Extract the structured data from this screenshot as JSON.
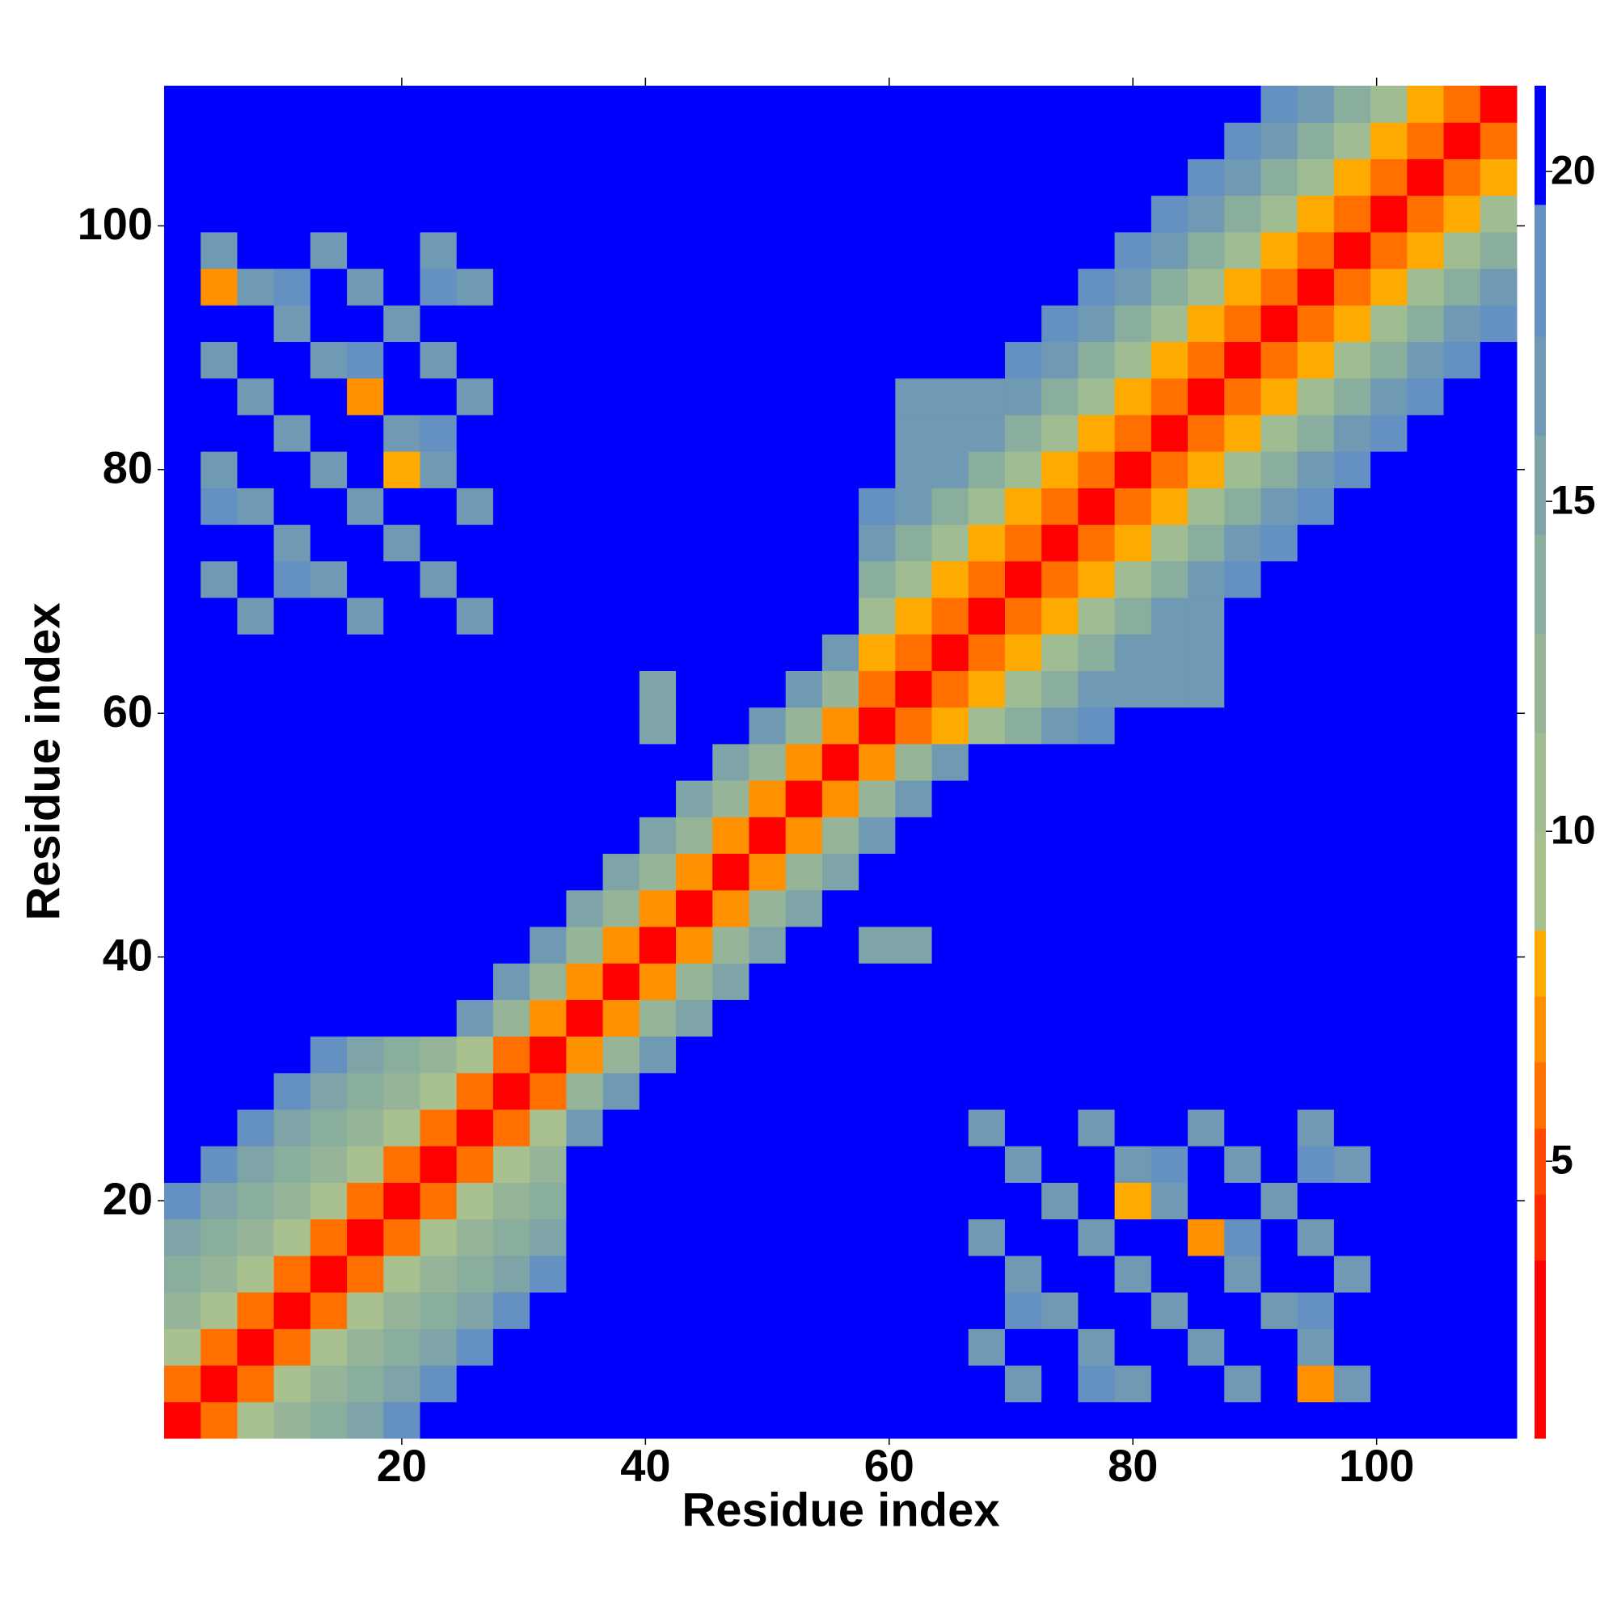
{
  "chart_data": {
    "type": "heatmap",
    "x_label": "Residue index",
    "y_label": "Residue index",
    "xlim": [
      0.5,
      111.5
    ],
    "ylim": [
      0.5,
      111.5
    ],
    "xticks": [
      20,
      40,
      60,
      80,
      100
    ],
    "yticks": [
      20,
      40,
      60,
      80,
      100
    ],
    "zlim": [
      0.8,
      21.3
    ],
    "zticks": [
      5,
      10,
      15,
      20
    ],
    "colorscale": [
      {
        "value": 3.5,
        "color": "#ff0000"
      },
      {
        "value": 4.5,
        "color": "#ff2a00"
      },
      {
        "value": 5.5,
        "color": "#ff4a00"
      },
      {
        "value": 6.5,
        "color": "#ff7000"
      },
      {
        "value": 7.5,
        "color": "#ff9000"
      },
      {
        "value": 8.5,
        "color": "#ffaa00"
      },
      {
        "value": 10,
        "color": "#a9c08f"
      },
      {
        "value": 11.5,
        "color": "#a0bc92"
      },
      {
        "value": 13,
        "color": "#96b598"
      },
      {
        "value": 14.5,
        "color": "#8aae9e"
      },
      {
        "value": 16,
        "color": "#7ea4a8"
      },
      {
        "value": 17.5,
        "color": "#7099b4"
      },
      {
        "value": 19.5,
        "color": "#6490c2"
      },
      {
        "value": 21.3,
        "color": "#0000ff"
      }
    ],
    "x": [
      2,
      5,
      8,
      11,
      14,
      17,
      20,
      23,
      26,
      29,
      32,
      35,
      38,
      41,
      44,
      47,
      50,
      53,
      56,
      59,
      62,
      65,
      68,
      71,
      74,
      77,
      80,
      83,
      86,
      89,
      92,
      95,
      98,
      101,
      104,
      107,
      110
    ],
    "y": [
      2,
      5,
      8,
      11,
      14,
      17,
      20,
      23,
      26,
      29,
      32,
      35,
      38,
      41,
      44,
      47,
      50,
      53,
      56,
      59,
      62,
      65,
      68,
      71,
      74,
      77,
      80,
      83,
      86,
      89,
      92,
      95,
      98,
      101,
      104,
      107,
      110
    ],
    "z": [
      [
        3,
        6,
        9,
        12,
        14,
        16,
        18,
        21,
        21,
        21,
        21,
        21,
        21,
        21,
        21,
        21,
        21,
        21,
        21,
        21,
        21,
        21,
        21,
        21,
        21,
        21,
        21,
        21,
        21,
        21,
        21,
        21,
        21,
        21,
        21,
        21,
        21
      ],
      [
        6,
        3,
        6,
        9,
        12,
        14,
        16,
        18,
        21,
        21,
        21,
        21,
        21,
        21,
        21,
        21,
        21,
        21,
        21,
        21,
        21,
        21,
        21,
        17,
        21,
        18,
        17,
        21,
        21,
        17,
        21,
        7,
        17,
        21,
        21,
        21,
        21
      ],
      [
        9,
        6,
        3,
        6,
        9,
        12,
        14,
        16,
        18,
        21,
        21,
        21,
        21,
        21,
        21,
        21,
        21,
        21,
        21,
        21,
        21,
        21,
        17,
        21,
        21,
        17,
        21,
        21,
        17,
        21,
        21,
        17,
        21,
        21,
        21,
        21,
        21
      ],
      [
        12,
        9,
        6,
        3,
        6,
        9,
        12,
        14,
        16,
        18,
        21,
        21,
        21,
        21,
        21,
        21,
        21,
        21,
        21,
        21,
        21,
        21,
        21,
        18,
        17,
        21,
        21,
        17,
        21,
        21,
        17,
        18,
        21,
        21,
        21,
        21,
        21
      ],
      [
        14,
        12,
        9,
        6,
        3,
        6,
        9,
        12,
        14,
        16,
        18,
        21,
        21,
        21,
        21,
        21,
        21,
        21,
        21,
        21,
        21,
        21,
        21,
        17,
        21,
        21,
        17,
        21,
        21,
        17,
        21,
        21,
        17,
        21,
        21,
        21,
        21
      ],
      [
        16,
        14,
        12,
        9,
        6,
        3,
        6,
        9,
        12,
        14,
        16,
        21,
        21,
        21,
        21,
        21,
        21,
        21,
        21,
        21,
        21,
        21,
        17,
        21,
        21,
        17,
        21,
        21,
        7,
        18,
        21,
        17,
        21,
        21,
        21,
        21,
        21
      ],
      [
        18,
        16,
        14,
        12,
        9,
        6,
        3,
        6,
        9,
        12,
        14,
        21,
        21,
        21,
        21,
        21,
        21,
        21,
        21,
        21,
        21,
        21,
        21,
        21,
        17,
        21,
        8,
        17,
        21,
        21,
        17,
        21,
        21,
        21,
        21,
        21,
        21
      ],
      [
        21,
        18,
        16,
        14,
        12,
        9,
        6,
        3,
        6,
        9,
        12,
        21,
        21,
        21,
        21,
        21,
        21,
        21,
        21,
        21,
        21,
        21,
        21,
        17,
        21,
        21,
        17,
        18,
        21,
        17,
        21,
        18,
        17,
        21,
        21,
        21,
        21
      ],
      [
        21,
        21,
        18,
        16,
        14,
        12,
        9,
        6,
        3,
        6,
        9,
        17,
        21,
        21,
        21,
        21,
        21,
        21,
        21,
        21,
        21,
        21,
        17,
        21,
        21,
        17,
        21,
        21,
        17,
        21,
        21,
        17,
        21,
        21,
        21,
        21,
        21
      ],
      [
        21,
        21,
        21,
        18,
        16,
        14,
        12,
        9,
        6,
        3,
        6,
        13,
        17,
        21,
        21,
        21,
        21,
        21,
        21,
        21,
        21,
        21,
        21,
        21,
        21,
        21,
        21,
        21,
        21,
        21,
        21,
        21,
        21,
        21,
        21,
        21,
        21
      ],
      [
        21,
        21,
        21,
        21,
        18,
        16,
        14,
        12,
        9,
        6,
        3,
        7,
        13,
        17,
        21,
        21,
        21,
        21,
        21,
        21,
        21,
        21,
        21,
        21,
        21,
        21,
        21,
        21,
        21,
        21,
        21,
        21,
        21,
        21,
        21,
        21,
        21
      ],
      [
        21,
        21,
        21,
        21,
        21,
        21,
        21,
        21,
        17,
        13,
        7,
        3,
        7,
        12,
        16,
        21,
        21,
        21,
        21,
        21,
        21,
        21,
        21,
        21,
        21,
        21,
        21,
        21,
        21,
        21,
        21,
        21,
        21,
        21,
        21,
        21,
        21
      ],
      [
        21,
        21,
        21,
        21,
        21,
        21,
        21,
        21,
        21,
        17,
        13,
        7,
        3,
        7,
        12,
        16,
        21,
        21,
        21,
        21,
        21,
        21,
        21,
        21,
        21,
        21,
        21,
        21,
        21,
        21,
        21,
        21,
        21,
        21,
        21,
        21,
        21
      ],
      [
        21,
        21,
        21,
        21,
        21,
        21,
        21,
        21,
        21,
        21,
        17,
        12,
        7,
        3,
        7,
        12,
        16,
        21,
        21,
        16,
        16,
        21,
        21,
        21,
        21,
        21,
        21,
        21,
        21,
        21,
        21,
        21,
        21,
        21,
        21,
        21,
        21
      ],
      [
        21,
        21,
        21,
        21,
        21,
        21,
        21,
        21,
        21,
        21,
        21,
        16,
        12,
        7,
        3,
        7,
        12,
        16,
        21,
        21,
        21,
        21,
        21,
        21,
        21,
        21,
        21,
        21,
        21,
        21,
        21,
        21,
        21,
        21,
        21,
        21,
        21
      ],
      [
        21,
        21,
        21,
        21,
        21,
        21,
        21,
        21,
        21,
        21,
        21,
        21,
        16,
        12,
        7,
        3,
        7,
        12,
        16,
        21,
        21,
        21,
        21,
        21,
        21,
        21,
        21,
        21,
        21,
        21,
        21,
        21,
        21,
        21,
        21,
        21,
        21
      ],
      [
        21,
        21,
        21,
        21,
        21,
        21,
        21,
        21,
        21,
        21,
        21,
        21,
        21,
        16,
        12,
        7,
        3,
        7,
        12,
        17,
        21,
        21,
        21,
        21,
        21,
        21,
        21,
        21,
        21,
        21,
        21,
        21,
        21,
        21,
        21,
        21,
        21
      ],
      [
        21,
        21,
        21,
        21,
        21,
        21,
        21,
        21,
        21,
        21,
        21,
        21,
        21,
        21,
        16,
        12,
        7,
        3,
        7,
        13,
        17,
        21,
        21,
        21,
        21,
        21,
        21,
        21,
        21,
        21,
        21,
        21,
        21,
        21,
        21,
        21,
        21
      ],
      [
        21,
        21,
        21,
        21,
        21,
        21,
        21,
        21,
        21,
        21,
        21,
        21,
        21,
        21,
        21,
        16,
        12,
        7,
        3,
        7,
        13,
        17,
        21,
        21,
        21,
        21,
        21,
        21,
        21,
        21,
        21,
        21,
        21,
        21,
        21,
        21,
        21
      ],
      [
        21,
        21,
        21,
        21,
        21,
        21,
        21,
        21,
        21,
        21,
        21,
        21,
        21,
        16,
        21,
        21,
        17,
        13,
        7,
        3,
        6,
        8,
        11,
        14,
        17,
        19,
        21,
        21,
        21,
        21,
        21,
        21,
        21,
        21,
        21,
        21,
        21
      ],
      [
        21,
        21,
        21,
        21,
        21,
        21,
        21,
        21,
        21,
        21,
        21,
        21,
        21,
        16,
        21,
        21,
        21,
        17,
        13,
        6,
        3,
        6,
        8,
        11,
        14,
        17,
        17,
        17,
        17,
        21,
        21,
        21,
        21,
        21,
        21,
        21,
        21
      ],
      [
        21,
        21,
        21,
        21,
        21,
        21,
        21,
        21,
        21,
        21,
        21,
        21,
        21,
        21,
        21,
        21,
        21,
        21,
        17,
        8,
        6,
        3,
        6,
        8,
        11,
        14,
        17,
        17,
        17,
        21,
        21,
        21,
        21,
        21,
        21,
        21,
        21
      ],
      [
        21,
        21,
        17,
        21,
        21,
        17,
        21,
        21,
        17,
        21,
        21,
        21,
        21,
        21,
        21,
        21,
        21,
        21,
        21,
        11,
        8,
        6,
        3,
        6,
        8,
        11,
        14,
        17,
        17,
        21,
        21,
        21,
        21,
        21,
        21,
        21,
        21
      ],
      [
        21,
        17,
        21,
        18,
        17,
        21,
        21,
        17,
        21,
        21,
        21,
        21,
        21,
        21,
        21,
        21,
        21,
        21,
        21,
        14,
        11,
        8,
        6,
        3,
        6,
        8,
        11,
        14,
        17,
        19,
        21,
        21,
        21,
        21,
        21,
        21,
        21
      ],
      [
        21,
        21,
        21,
        17,
        21,
        21,
        17,
        21,
        21,
        21,
        21,
        21,
        21,
        21,
        21,
        21,
        21,
        21,
        21,
        17,
        14,
        11,
        8,
        6,
        3,
        6,
        8,
        11,
        14,
        17,
        19,
        21,
        21,
        21,
        21,
        21,
        21
      ],
      [
        21,
        18,
        17,
        21,
        21,
        17,
        21,
        21,
        17,
        21,
        21,
        21,
        21,
        21,
        21,
        21,
        21,
        21,
        21,
        19,
        17,
        14,
        11,
        8,
        6,
        3,
        6,
        8,
        11,
        14,
        17,
        19,
        21,
        21,
        21,
        21,
        21
      ],
      [
        21,
        17,
        21,
        21,
        17,
        21,
        8,
        17,
        21,
        21,
        21,
        21,
        21,
        21,
        21,
        21,
        21,
        21,
        21,
        21,
        17,
        17,
        14,
        11,
        8,
        6,
        3,
        6,
        8,
        11,
        14,
        17,
        19,
        21,
        21,
        21,
        21
      ],
      [
        21,
        21,
        21,
        17,
        21,
        21,
        17,
        18,
        21,
        21,
        21,
        21,
        21,
        21,
        21,
        21,
        21,
        21,
        21,
        21,
        17,
        17,
        17,
        14,
        11,
        8,
        6,
        3,
        6,
        8,
        11,
        14,
        17,
        19,
        21,
        21,
        21
      ],
      [
        21,
        21,
        17,
        21,
        21,
        7,
        21,
        21,
        17,
        21,
        21,
        21,
        21,
        21,
        21,
        21,
        21,
        21,
        21,
        21,
        17,
        17,
        17,
        17,
        14,
        11,
        8,
        6,
        3,
        6,
        8,
        11,
        14,
        17,
        19,
        21,
        21
      ],
      [
        21,
        17,
        21,
        21,
        17,
        18,
        21,
        17,
        21,
        21,
        21,
        21,
        21,
        21,
        21,
        21,
        21,
        21,
        21,
        21,
        21,
        21,
        21,
        19,
        17,
        14,
        11,
        8,
        6,
        3,
        6,
        8,
        11,
        14,
        17,
        19,
        21
      ],
      [
        21,
        21,
        21,
        17,
        21,
        21,
        17,
        21,
        21,
        21,
        21,
        21,
        21,
        21,
        21,
        21,
        21,
        21,
        21,
        21,
        21,
        21,
        21,
        21,
        19,
        17,
        14,
        11,
        8,
        6,
        3,
        6,
        8,
        11,
        14,
        17,
        19
      ],
      [
        21,
        7,
        17,
        18,
        21,
        17,
        21,
        18,
        17,
        21,
        21,
        21,
        21,
        21,
        21,
        21,
        21,
        21,
        21,
        21,
        21,
        21,
        21,
        21,
        21,
        19,
        17,
        14,
        11,
        8,
        6,
        3,
        6,
        8,
        11,
        14,
        17
      ],
      [
        21,
        17,
        21,
        21,
        17,
        21,
        21,
        17,
        21,
        21,
        21,
        21,
        21,
        21,
        21,
        21,
        21,
        21,
        21,
        21,
        21,
        21,
        21,
        21,
        21,
        21,
        19,
        17,
        14,
        11,
        8,
        6,
        3,
        6,
        8,
        11,
        14
      ],
      [
        21,
        21,
        21,
        21,
        21,
        21,
        21,
        21,
        21,
        21,
        21,
        21,
        21,
        21,
        21,
        21,
        21,
        21,
        21,
        21,
        21,
        21,
        21,
        21,
        21,
        21,
        21,
        19,
        17,
        14,
        11,
        8,
        6,
        3,
        6,
        8,
        11
      ],
      [
        21,
        21,
        21,
        21,
        21,
        21,
        21,
        21,
        21,
        21,
        21,
        21,
        21,
        21,
        21,
        21,
        21,
        21,
        21,
        21,
        21,
        21,
        21,
        21,
        21,
        21,
        21,
        21,
        19,
        17,
        14,
        11,
        8,
        6,
        3,
        6,
        8
      ],
      [
        21,
        21,
        21,
        21,
        21,
        21,
        21,
        21,
        21,
        21,
        21,
        21,
        21,
        21,
        21,
        21,
        21,
        21,
        21,
        21,
        21,
        21,
        21,
        21,
        21,
        21,
        21,
        21,
        21,
        19,
        17,
        14,
        11,
        8,
        6,
        3,
        6
      ],
      [
        21,
        21,
        21,
        21,
        21,
        21,
        21,
        21,
        21,
        21,
        21,
        21,
        21,
        21,
        21,
        21,
        21,
        21,
        21,
        21,
        21,
        21,
        21,
        21,
        21,
        21,
        21,
        21,
        21,
        21,
        19,
        17,
        14,
        11,
        8,
        6,
        3
      ]
    ]
  }
}
